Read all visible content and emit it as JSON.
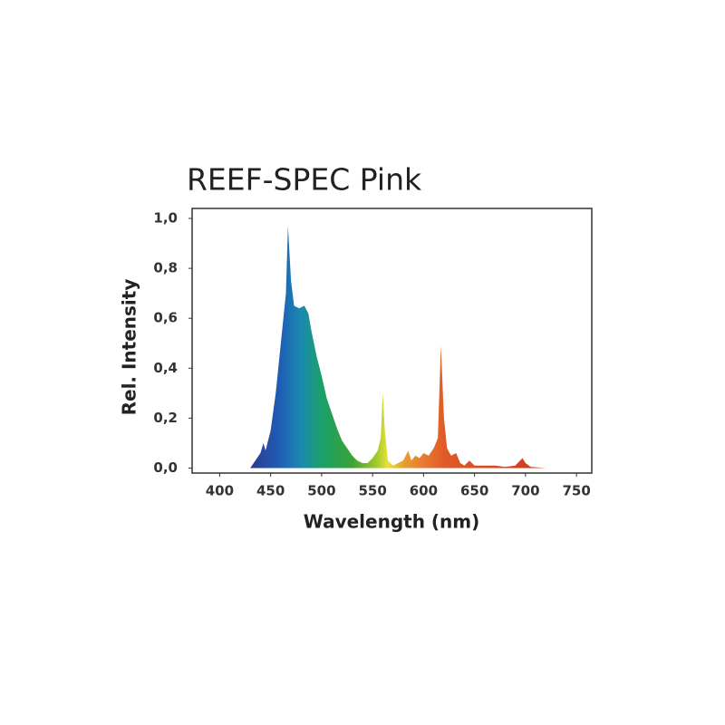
{
  "chart_data": {
    "type": "area",
    "title": "REEF-SPEC  Pink",
    "xlabel": "Wavelength (nm)",
    "ylabel": "Rel. Intensity",
    "x": [
      430,
      435,
      440,
      443,
      445,
      450,
      455,
      460,
      465,
      467,
      470,
      473,
      478,
      483,
      487,
      490,
      495,
      500,
      505,
      510,
      515,
      520,
      525,
      530,
      535,
      540,
      545,
      550,
      555,
      558,
      560,
      562,
      565,
      570,
      575,
      580,
      585,
      588,
      592,
      596,
      600,
      605,
      610,
      614,
      617,
      620,
      623,
      627,
      632,
      636,
      640,
      645,
      650,
      660,
      670,
      680,
      690,
      697,
      700,
      705,
      720
    ],
    "values": [
      0,
      0.03,
      0.06,
      0.1,
      0.07,
      0.15,
      0.3,
      0.5,
      0.7,
      0.97,
      0.75,
      0.65,
      0.64,
      0.65,
      0.62,
      0.55,
      0.45,
      0.37,
      0.28,
      0.22,
      0.16,
      0.11,
      0.08,
      0.05,
      0.03,
      0.02,
      0.02,
      0.04,
      0.07,
      0.12,
      0.3,
      0.15,
      0.03,
      0.01,
      0.02,
      0.03,
      0.07,
      0.03,
      0.05,
      0.04,
      0.06,
      0.05,
      0.08,
      0.12,
      0.49,
      0.2,
      0.08,
      0.05,
      0.06,
      0.02,
      0.01,
      0.03,
      0.01,
      0.01,
      0.01,
      0.005,
      0.01,
      0.04,
      0.02,
      0.005,
      0
    ],
    "colors": [
      {
        "value": 430,
        "color": "#2a3b8f"
      },
      {
        "value": 460,
        "color": "#1f5fb5"
      },
      {
        "value": 480,
        "color": "#1a8ab0"
      },
      {
        "value": 500,
        "color": "#1aa06a"
      },
      {
        "value": 530,
        "color": "#3aa335"
      },
      {
        "value": 555,
        "color": "#a8cc2a"
      },
      {
        "value": 565,
        "color": "#e8e23a"
      },
      {
        "value": 580,
        "color": "#e8a030"
      },
      {
        "value": 600,
        "color": "#e87a30"
      },
      {
        "value": 620,
        "color": "#e05a28"
      },
      {
        "value": 700,
        "color": "#d04020"
      }
    ],
    "xlim": [
      373,
      765
    ],
    "ylim": [
      -0.02,
      1.04
    ],
    "xticks": [
      400,
      450,
      500,
      550,
      600,
      650,
      700,
      750
    ],
    "yticks": [
      {
        "value": 0,
        "label": "0,0"
      },
      {
        "value": 0.2,
        "label": "0,2"
      },
      {
        "value": 0.4,
        "label": "0,4"
      },
      {
        "value": 0.6,
        "label": "0,6"
      },
      {
        "value": 0.8,
        "label": "0,8"
      },
      {
        "value": 1.0,
        "label": "1,0"
      }
    ]
  }
}
